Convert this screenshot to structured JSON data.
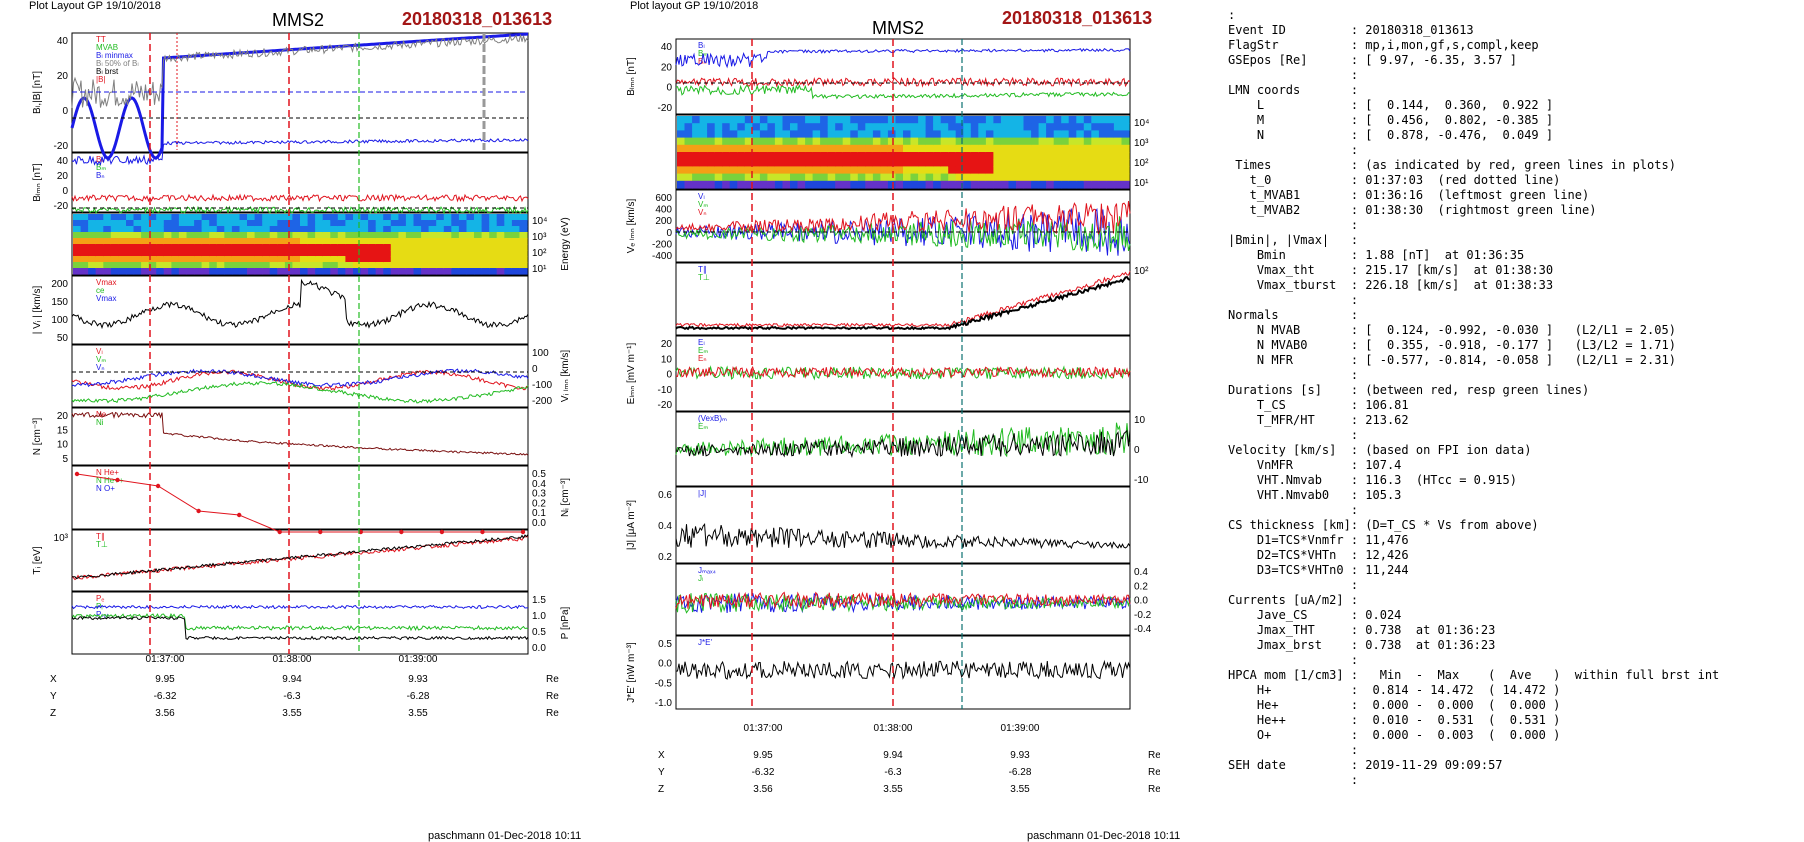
{
  "colors": {
    "red": "#e0141e",
    "green": "#22bb22",
    "blue": "#1a1ae6",
    "black": "#000000",
    "gray": "#808080",
    "dark_red": "#a31515"
  },
  "left": {
    "header": "Plot Layout GP 19/10/2018",
    "mms": "MMS2",
    "event": "20180318_013613",
    "ylabels": [
      "Bₗ,|B| [nT]",
      "Bₗₘₙ [nT]",
      "Energy (eV)",
      "| Vᵢ | [km/s]",
      "Vᵢ ₗₘₙ [km/s]",
      "N [cm⁻³]",
      "Nᵢ [cm⁻³]",
      "Tᵢ [eV]",
      "P [nPa]"
    ],
    "legends": [
      [
        "TT",
        "MVAB",
        "Bₗ minmax",
        "Bₗ 50% of Bₗ",
        "Bₗ brst",
        "|B|"
      ],
      [
        "Bₗ",
        "Bₘ",
        "Bₙ"
      ],
      [],
      [
        "Vmax",
        "ce",
        "Vmax"
      ],
      [
        "Vₗ",
        "Vₘ",
        "Vₙ"
      ],
      [
        "Ne",
        "Ni"
      ],
      [
        "N He+",
        "N He++",
        "N O+"
      ],
      [
        "T∥",
        "T⊥"
      ],
      [
        "Pₑ",
        "Pᵢ",
        "Pₜₒₜ"
      ]
    ],
    "ticks": [
      [
        "40",
        "20",
        "0",
        "-20"
      ],
      [
        "40",
        "20",
        "0",
        "-20"
      ],
      [
        "10⁴",
        "10³",
        "10²",
        "10¹"
      ],
      [
        "200",
        "150",
        "100",
        "50"
      ],
      [
        "100",
        "0",
        "-100",
        "-200"
      ],
      [
        "20",
        "15",
        "10",
        "5"
      ],
      [
        "0.5",
        "0.4",
        "0.3",
        "0.2",
        "0.1",
        "0.0"
      ],
      [
        "10³"
      ],
      [
        "1.5",
        "1.0",
        "0.5",
        "0.0"
      ]
    ],
    "time_labels": [
      "01:37:00",
      "01:38:00",
      "01:39:00"
    ],
    "eph": {
      "rows": [
        [
          "X",
          "9.95",
          "9.94",
          "9.93",
          "Re"
        ],
        [
          "Y",
          "-6.32",
          "-6.3",
          "-6.28",
          "Re"
        ],
        [
          "Z",
          "3.56",
          "3.55",
          "3.55",
          "Re"
        ]
      ]
    },
    "footer": "paschmann 01-Dec-2018 10:11"
  },
  "middle": {
    "header": "Plot layout GP 19/10/2018",
    "mms": "MMS2",
    "event": "20180318_013613",
    "ylabels": [
      "Bₗₘₙ [nT]",
      "Energy (eV)",
      "Vₑ ₗₘₙ [km/s]",
      "Tₑ [eV]",
      "Eₗₘₙ [mV m⁻¹]",
      "Eₘ [mW m⁻²]",
      "|J| [μA m⁻²]",
      "J [μA m⁻²]",
      "J*E' [nW m⁻³]"
    ],
    "legends": [
      [
        "Bₗ",
        "Bₘ",
        "Bₙ"
      ],
      [],
      [
        "Vₗ",
        "Vₘ",
        "Vₙ"
      ],
      [
        "T∥",
        "T⊥"
      ],
      [
        "Eₗ",
        "Eₘ",
        "Eₙ"
      ],
      [
        "(VexB)ₘ",
        "Eₘ"
      ],
      [
        "|J|"
      ],
      [
        "Jₘₐₓ₄",
        "Jₗ"
      ],
      [
        "J*E'"
      ]
    ],
    "ticks": [
      [
        "40",
        "20",
        "0",
        "-20"
      ],
      [
        "10⁴",
        "10³",
        "10²",
        "10¹"
      ],
      [
        "600",
        "400",
        "200",
        "0",
        "-200",
        "-400"
      ],
      [
        "10²"
      ],
      [
        "20",
        "10",
        "0",
        "-10",
        "-20"
      ],
      [
        "10",
        "0",
        "-10"
      ],
      [
        "0.6",
        "0.4",
        "0.2"
      ],
      [
        "0.4",
        "0.2",
        "0.0",
        "-0.2",
        "-0.4"
      ],
      [
        "0.5",
        "0.0",
        "-0.5",
        "-1.0"
      ]
    ],
    "time_labels": [
      "01:37:00",
      "01:38:00",
      "01:39:00"
    ],
    "eph": {
      "rows": [
        [
          "X",
          "9.95",
          "9.94",
          "9.93",
          "Re"
        ],
        [
          "Y",
          "-6.32",
          "-6.3",
          "-6.28",
          "Re"
        ],
        [
          "Z",
          "3.56",
          "3.55",
          "3.55",
          "Re"
        ]
      ]
    },
    "footer": "paschmann 01-Dec-2018 10:11"
  },
  "info_lines": [
    ":",
    "Event ID         : 20180318_013613",
    "FlagStr          : mp,i,mon,gf,s,compl,keep",
    "GSEpos [Re]      : [ 9.97, -6.35, 3.57 ]",
    "                 :",
    "LMN coords       :",
    "    L            : [  0.144,  0.360,  0.922 ]",
    "    M            : [  0.456,  0.802, -0.385 ]",
    "    N            : [  0.878, -0.476,  0.049 ]",
    "                 :",
    " Times           : (as indicated by red, green lines in plots)",
    "   t_0           : 01:37:03  (red dotted line)",
    "   t_MVAB1       : 01:36:16  (leftmost green line)",
    "   t_MVAB2       : 01:38:30  (rightmost green line)",
    "                 :",
    "|Bmin|, |Vmax|   :",
    "    Bmin         : 1.88 [nT]  at 01:36:35",
    "    Vmax_tht     : 215.17 [km/s]  at 01:38:30",
    "    Vmax_tburst  : 226.18 [km/s]  at 01:38:33",
    "                 :",
    "Normals          :",
    "    N MVAB       : [  0.124, -0.992, -0.030 ]   (L2/L1 = 2.05)",
    "    N MVAB0      : [  0.355, -0.918, -0.177 ]   (L3/L2 = 1.71)",
    "    N MFR        : [ -0.577, -0.814, -0.058 ]   (L2/L1 = 2.31)",
    "                 :",
    "Durations [s]    : (between red, resp green lines)",
    "    T_CS         : 106.81",
    "    T_MFR/HT     : 213.62",
    "                 :",
    "Velocity [km/s]  : (based on FPI ion data)",
    "    VnMFR        : 107.4",
    "    VHT.Nmvab    : 116.3  (HTcc = 0.915)",
    "    VHT.Nmvab0   : 105.3",
    "                 :",
    "CS thickness [km]: (D=T_CS * Vs from above)",
    "    D1=TCS*Vnmfr : 11,476",
    "    D2=TCS*VHTn  : 12,426",
    "    D3=TCS*VHTn0 : 11,244",
    "                 :",
    "Currents [uA/m2] :",
    "    Jave_CS      : 0.024",
    "    Jmax_THT     : 0.738  at 01:36:23",
    "    Jmax_brst    : 0.738  at 01:36:23",
    "                 :",
    "HPCA mom [1/cm3] :   Min  -  Max    (  Ave   )  within full brst int",
    "    H+           :  0.814 - 14.472  ( 14.472 )",
    "    He+          :  0.000 -  0.000  (  0.000 )",
    "    He++         :  0.010 -  0.531  (  0.531 )",
    "    O+           :  0.000 -  0.003  (  0.000 )",
    "                 :",
    "SEH date         : 2019-11-29 09:09:57",
    "                 :"
  ]
}
